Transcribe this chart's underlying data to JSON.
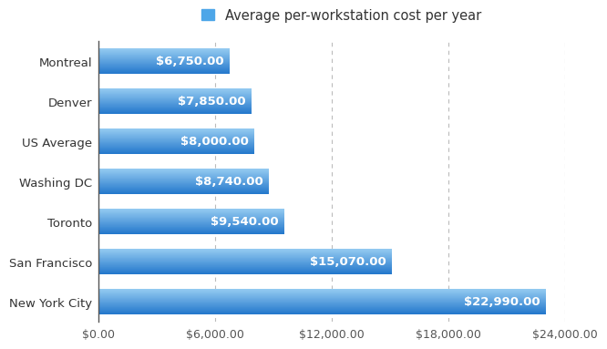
{
  "categories": [
    "New York City",
    "San Francisco",
    "Toronto",
    "Washing DC",
    "US Average",
    "Denver",
    "Montreal"
  ],
  "values": [
    22990,
    15070,
    9540,
    8740,
    8000,
    7850,
    6750
  ],
  "labels": [
    "$22,990.00",
    "$15,070.00",
    "$9,540.00",
    "$8,740.00",
    "$8,000.00",
    "$7,850.00",
    "$6,750.00"
  ],
  "bar_color_top": "#92c9f0",
  "bar_color_bottom": "#2478cc",
  "legend_color": "#4da6e8",
  "legend_label": "Average per-workstation cost per year",
  "xlim": [
    0,
    24000
  ],
  "xticks": [
    0,
    6000,
    12000,
    18000,
    24000
  ],
  "xtick_labels": [
    "$0.00",
    "$6,000.00",
    "$12,000.00",
    "$18,000.00",
    "$24,000.00"
  ],
  "grid_color": "#bbbbbb",
  "background_color": "#ffffff",
  "label_fontsize": 9.5,
  "tick_fontsize": 9,
  "legend_fontsize": 10.5,
  "bar_label_fontsize": 9.5,
  "bar_height": 0.62
}
